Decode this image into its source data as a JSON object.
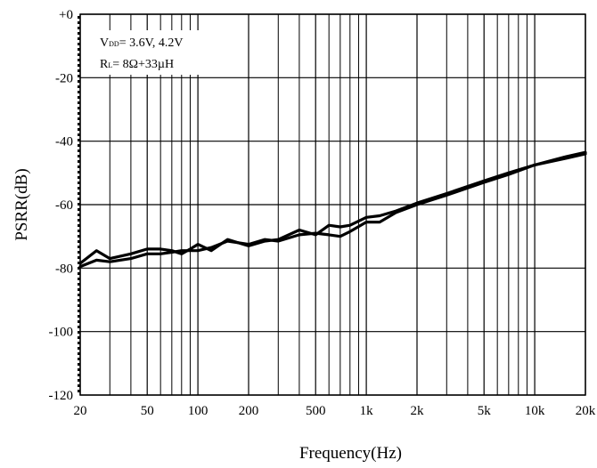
{
  "chart_data": {
    "type": "line",
    "xlabel": "Frequency(Hz)",
    "ylabel": "PSRR(dB)",
    "xscale": "log",
    "xlim": [
      20,
      20000
    ],
    "ylim": [
      -120,
      0
    ],
    "grid": true,
    "x_ticks": [
      {
        "value": 20,
        "label": "20"
      },
      {
        "value": 50,
        "label": "50"
      },
      {
        "value": 100,
        "label": "100"
      },
      {
        "value": 200,
        "label": "200"
      },
      {
        "value": 500,
        "label": "500"
      },
      {
        "value": 1000,
        "label": "1k"
      },
      {
        "value": 2000,
        "label": "2k"
      },
      {
        "value": 5000,
        "label": "5k"
      },
      {
        "value": 10000,
        "label": "10k"
      },
      {
        "value": 20000,
        "label": "20k"
      }
    ],
    "y_ticks": [
      {
        "value": 0,
        "label": "+0"
      },
      {
        "value": -20,
        "label": "-20"
      },
      {
        "value": -40,
        "label": "-40"
      },
      {
        "value": -60,
        "label": "-60"
      },
      {
        "value": -80,
        "label": "-80"
      },
      {
        "value": -100,
        "label": "-100"
      },
      {
        "value": -120,
        "label": "-120"
      }
    ],
    "annotation": {
      "line1": {
        "main": "V",
        "sub": "DD",
        "rest": "= 3.6V, 4.2V"
      },
      "line2": {
        "main": "R",
        "sub": "L",
        "rest": "= 8Ω+33µH"
      }
    },
    "series": [
      {
        "x": [
          20,
          25,
          30,
          40,
          50,
          60,
          70,
          80,
          90,
          100,
          120,
          150,
          200,
          250,
          300,
          400,
          500,
          600,
          700,
          800,
          1000,
          1200,
          1500,
          2000,
          3000,
          5000,
          7000,
          10000,
          15000,
          20000
        ],
        "y": [
          -78.5,
          -74.5,
          -77,
          -75.5,
          -74,
          -74,
          -74.5,
          -75.5,
          -74,
          -72.5,
          -74.5,
          -71,
          -73,
          -71.5,
          -71,
          -68,
          -69.5,
          -66.5,
          -67,
          -66.5,
          -64,
          -63.5,
          -62,
          -59.5,
          -56.5,
          -52.5,
          -50,
          -47.5,
          -45,
          -43.5
        ]
      },
      {
        "x": [
          20,
          25,
          30,
          40,
          50,
          60,
          70,
          80,
          90,
          100,
          120,
          150,
          200,
          250,
          300,
          400,
          500,
          600,
          700,
          800,
          1000,
          1200,
          1500,
          2000,
          3000,
          5000,
          7000,
          10000,
          15000,
          20000
        ],
        "y": [
          -79.5,
          -77.5,
          -78,
          -77,
          -75.5,
          -75.5,
          -75,
          -74.5,
          -74.5,
          -74.5,
          -73.5,
          -71.5,
          -72.5,
          -71,
          -71.5,
          -69.5,
          -69,
          -69.5,
          -70,
          -68.5,
          -65.5,
          -65.5,
          -62.5,
          -60,
          -57,
          -53,
          -50.5,
          -47.5,
          -45.5,
          -44
        ]
      }
    ]
  }
}
